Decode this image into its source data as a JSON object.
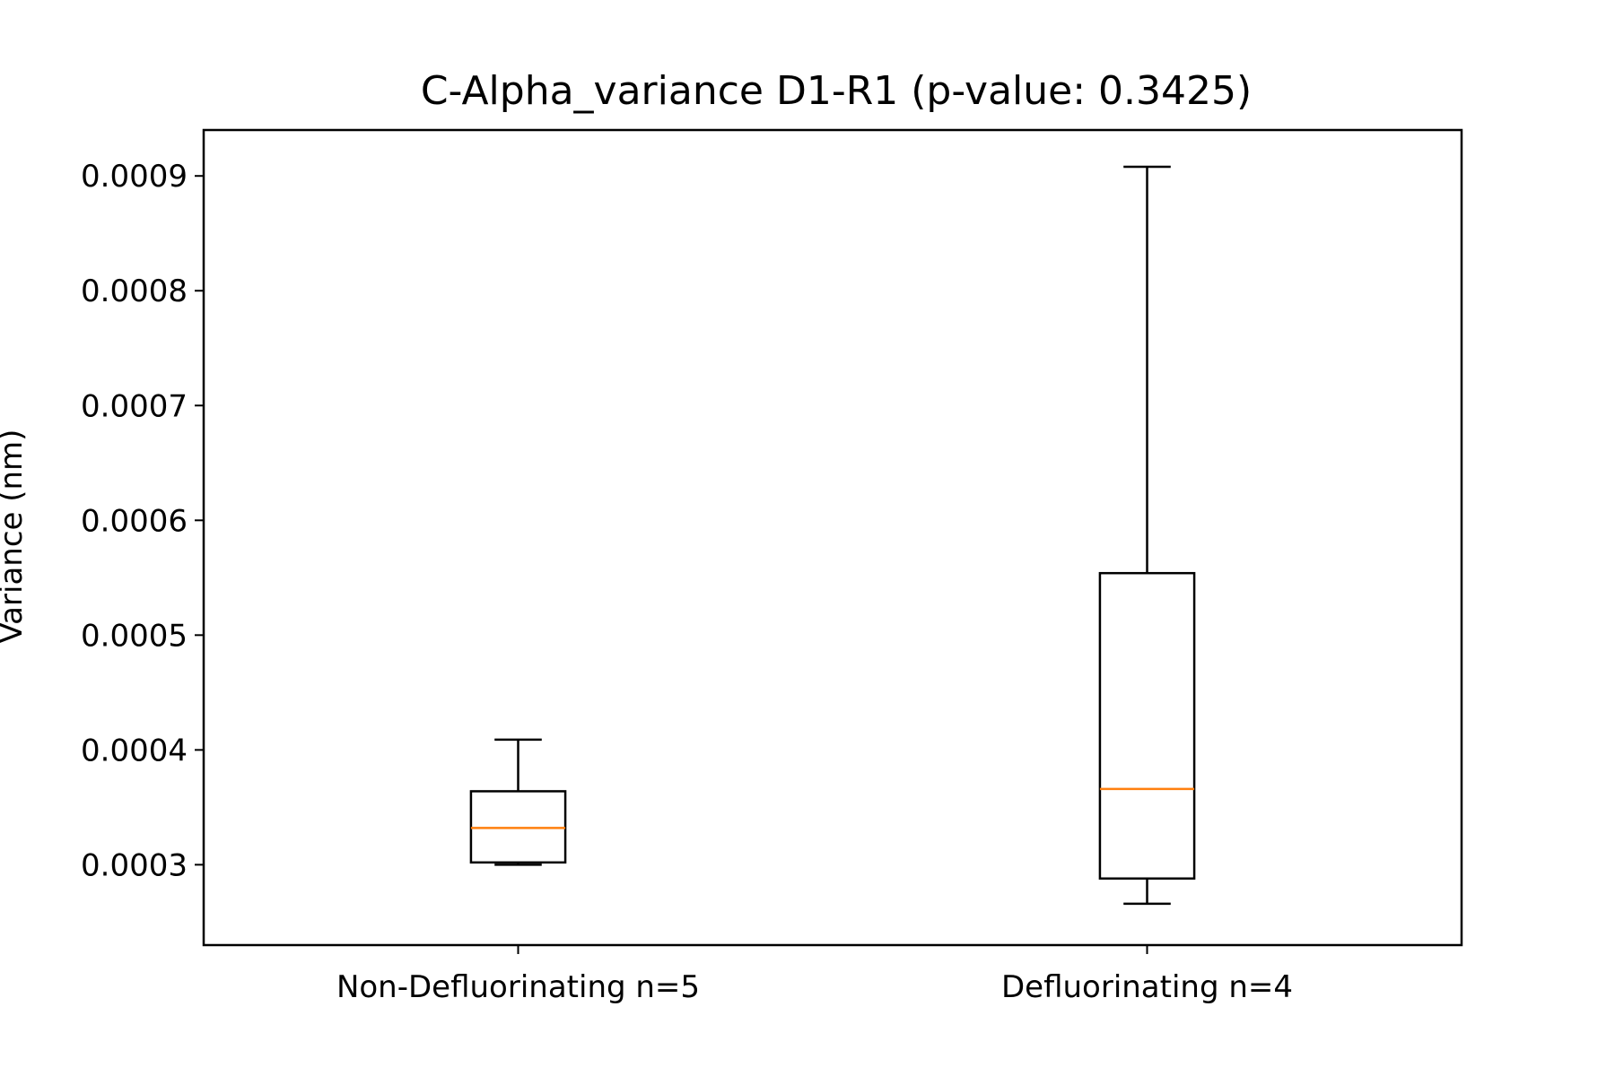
{
  "chart_data": {
    "type": "box",
    "title": "C-Alpha_variance D1-R1 (p-value: 0.3425)",
    "xlabel": "",
    "ylabel": "Variance (nm)",
    "ylim": [
      0.00023,
      0.00094
    ],
    "yticks": [
      0.0003,
      0.0004,
      0.0005,
      0.0006,
      0.0007,
      0.0008,
      0.0009
    ],
    "ytick_labels": [
      "0.0003",
      "0.0004",
      "0.0005",
      "0.0006",
      "0.0007",
      "0.0008",
      "0.0009"
    ],
    "categories": [
      "Non-Defluorinating n=5",
      "Defluorinating n=4"
    ],
    "boxes": [
      {
        "whisker_low": 0.0003,
        "q1": 0.000302,
        "median": 0.000332,
        "q3": 0.000364,
        "whisker_high": 0.000409
      },
      {
        "whisker_low": 0.000266,
        "q1": 0.000288,
        "median": 0.000366,
        "q3": 0.000554,
        "whisker_high": 0.000908
      }
    ],
    "grid": false,
    "colors": {
      "box": "#000000",
      "median": "#ff7f0e"
    }
  }
}
